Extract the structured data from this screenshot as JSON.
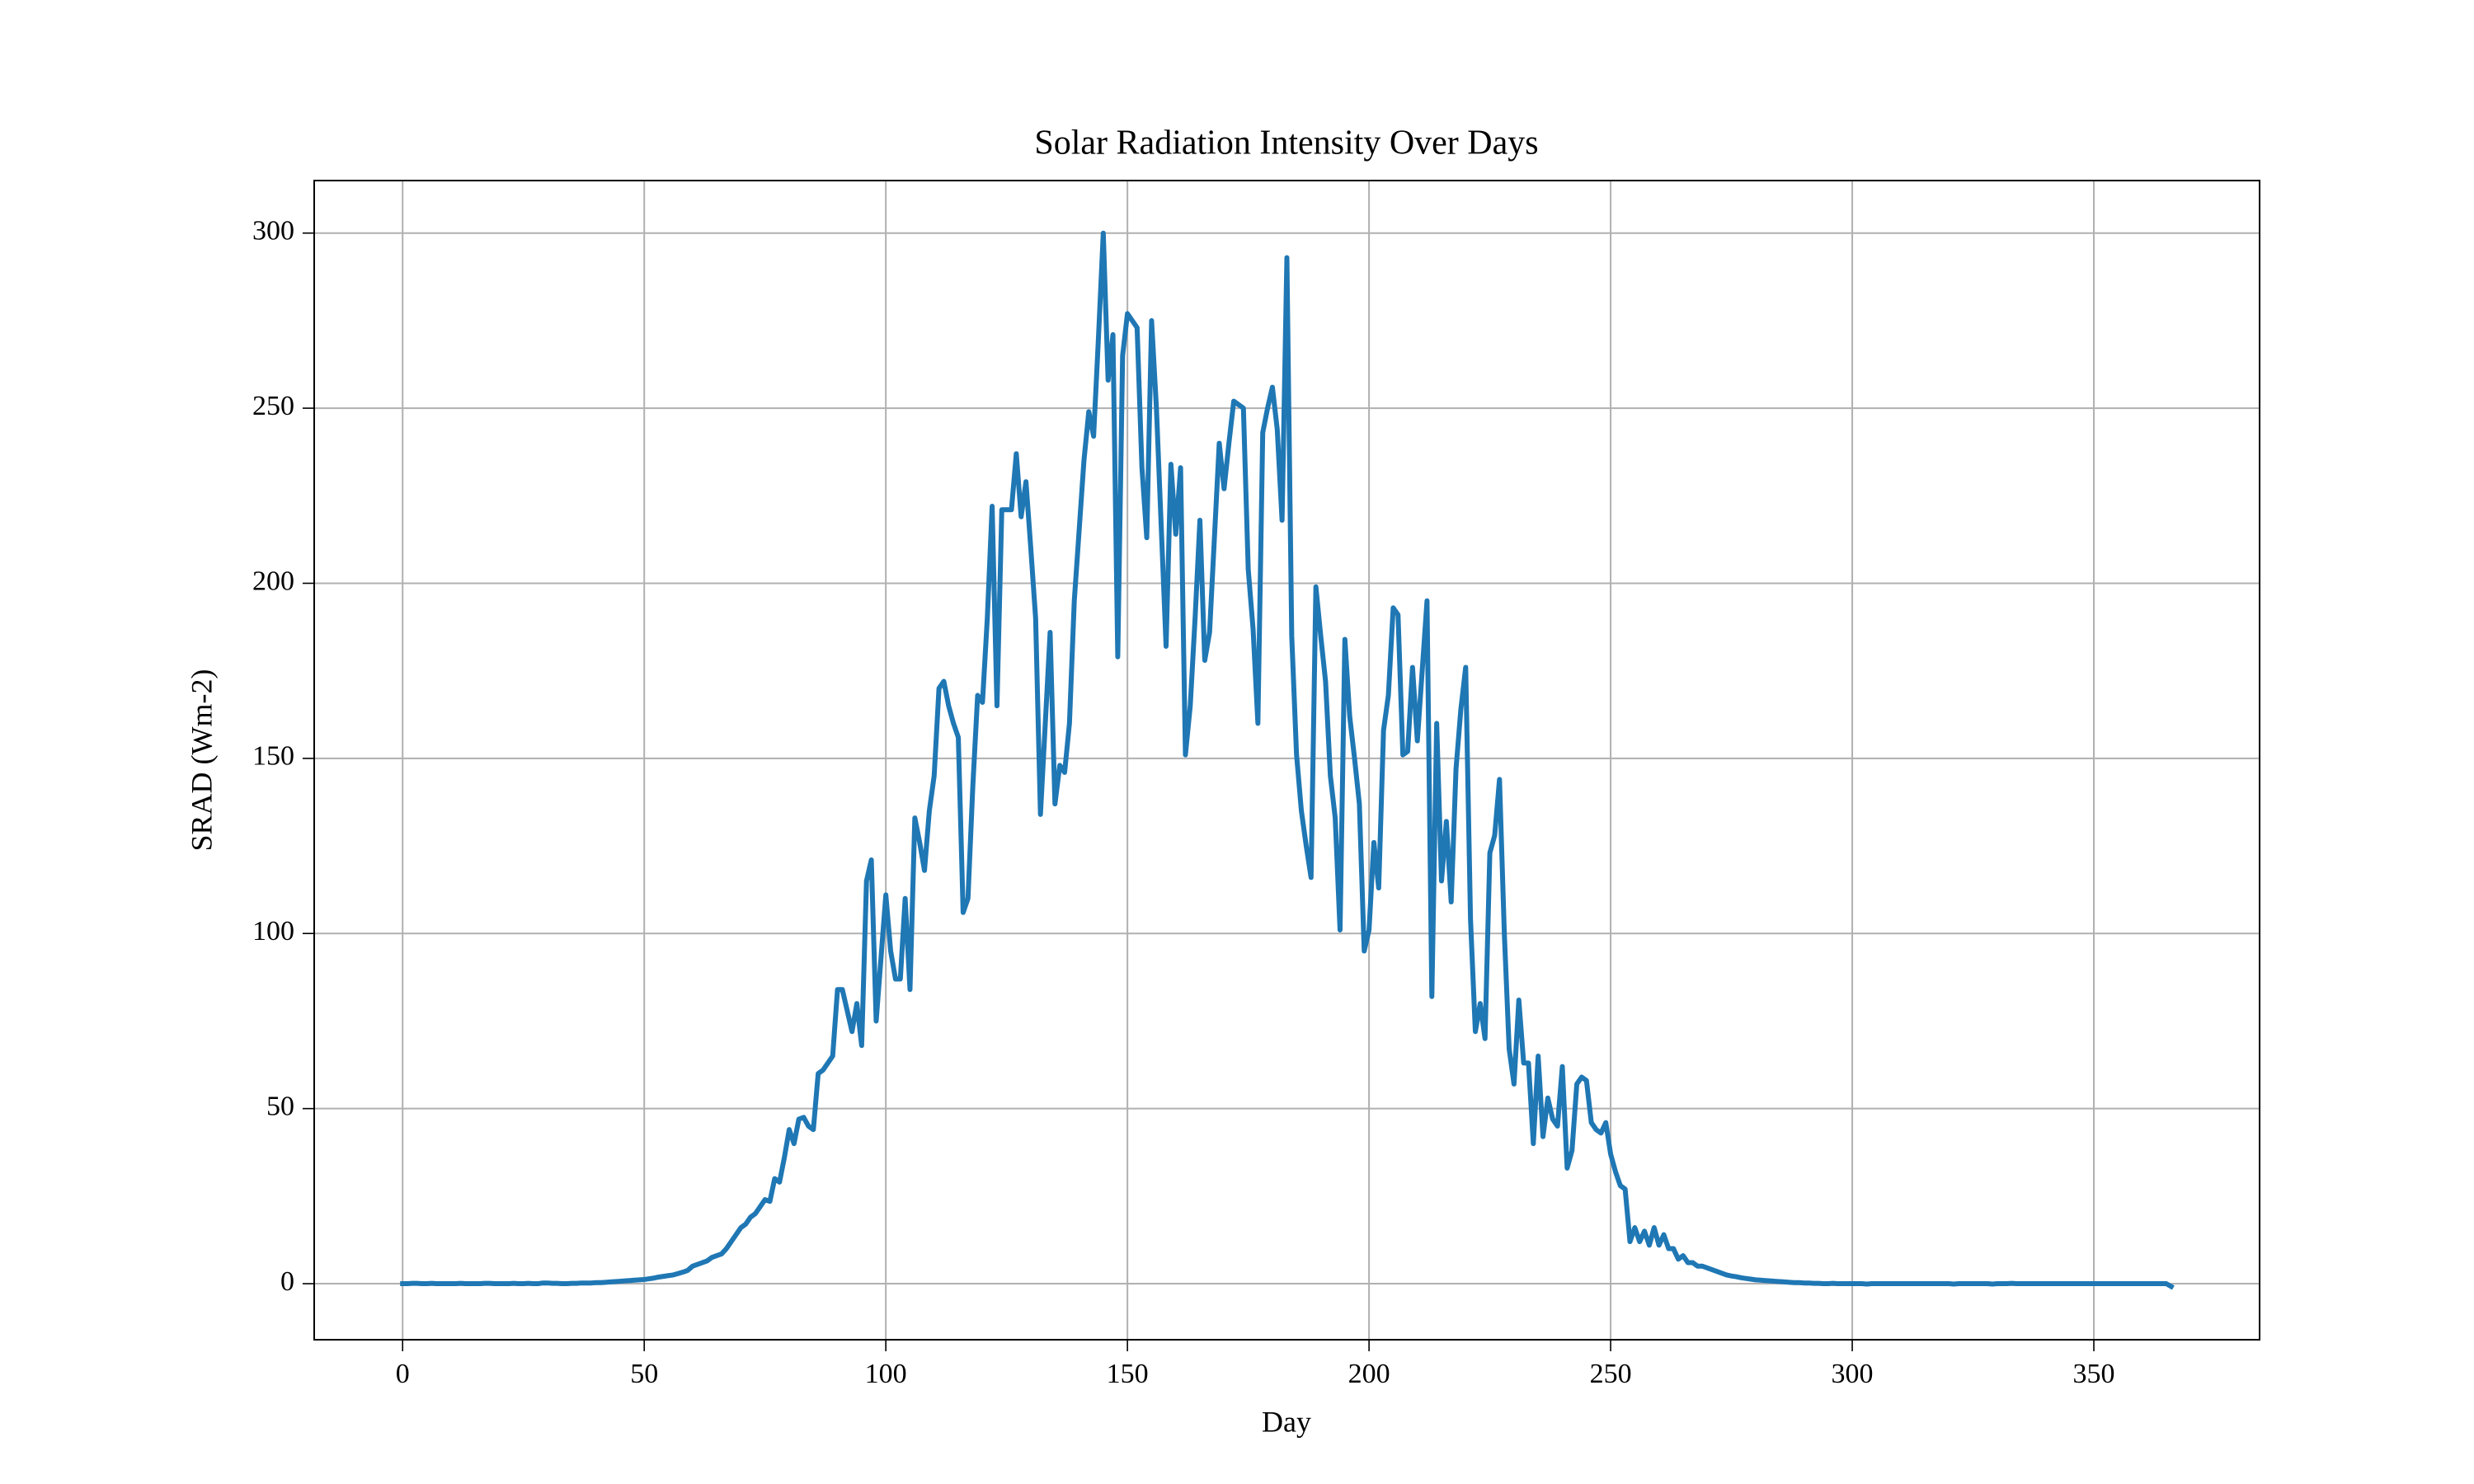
{
  "chart_data": {
    "type": "line",
    "title": "Solar Radiation Intensity Over Days",
    "x_label": "Day",
    "y_label": "SRAD (Wm-2)",
    "xlim": [
      -18.3,
      384.3
    ],
    "ylim": [
      -16,
      315
    ],
    "xticks": [
      0,
      50,
      100,
      150,
      200,
      250,
      300,
      350
    ],
    "yticks": [
      0,
      50,
      100,
      150,
      200,
      250,
      300
    ],
    "grid": true,
    "x": [
      0,
      1,
      2,
      3,
      4,
      5,
      6,
      7,
      8,
      9,
      10,
      11,
      12,
      13,
      14,
      15,
      16,
      17,
      18,
      19,
      20,
      21,
      22,
      23,
      24,
      25,
      26,
      27,
      28,
      29,
      30,
      31,
      32,
      33,
      34,
      35,
      36,
      37,
      38,
      39,
      40,
      41,
      42,
      43,
      44,
      45,
      46,
      47,
      48,
      49,
      50,
      51,
      52,
      53,
      54,
      55,
      56,
      57,
      58,
      59,
      60,
      61,
      62,
      63,
      64,
      65,
      66,
      67,
      68,
      69,
      70,
      71,
      72,
      73,
      74,
      75,
      76,
      77,
      78,
      79,
      80,
      81,
      82,
      83,
      84,
      85,
      86,
      87,
      88,
      89,
      90,
      91,
      92,
      93,
      94,
      95,
      96,
      97,
      98,
      99,
      100,
      101,
      102,
      103,
      104,
      105,
      106,
      107,
      108,
      109,
      110,
      111,
      112,
      113,
      114,
      115,
      116,
      117,
      118,
      119,
      120,
      121,
      122,
      123,
      124,
      125,
      126,
      127,
      128,
      129,
      130,
      131,
      132,
      133,
      134,
      135,
      136,
      137,
      138,
      139,
      140,
      141,
      142,
      143,
      144,
      145,
      146,
      147,
      148,
      149,
      150,
      151,
      152,
      153,
      154,
      155,
      156,
      157,
      158,
      159,
      160,
      161,
      162,
      163,
      164,
      165,
      166,
      167,
      168,
      169,
      170,
      171,
      172,
      173,
      174,
      175,
      176,
      177,
      178,
      179,
      180,
      181,
      182,
      183,
      184,
      185,
      186,
      187,
      188,
      189,
      190,
      191,
      192,
      193,
      194,
      195,
      196,
      197,
      198,
      199,
      200,
      201,
      202,
      203,
      204,
      205,
      206,
      207,
      208,
      209,
      210,
      211,
      212,
      213,
      214,
      215,
      216,
      217,
      218,
      219,
      220,
      221,
      222,
      223,
      224,
      225,
      226,
      227,
      228,
      229,
      230,
      231,
      232,
      233,
      234,
      235,
      236,
      237,
      238,
      239,
      240,
      241,
      242,
      243,
      244,
      245,
      246,
      247,
      248,
      249,
      250,
      251,
      252,
      253,
      254,
      255,
      256,
      257,
      258,
      259,
      260,
      261,
      262,
      263,
      264,
      265,
      266,
      267,
      268,
      269,
      270,
      271,
      272,
      273,
      274,
      275,
      276,
      277,
      278,
      279,
      280,
      281,
      282,
      283,
      284,
      285,
      286,
      287,
      288,
      289,
      290,
      291,
      292,
      293,
      294,
      295,
      296,
      297,
      298,
      299,
      300,
      301,
      302,
      303,
      304,
      305,
      306,
      307,
      308,
      309,
      310,
      311,
      312,
      313,
      314,
      315,
      316,
      317,
      318,
      319,
      320,
      321,
      322,
      323,
      324,
      325,
      326,
      327,
      328,
      329,
      330,
      331,
      332,
      333,
      334,
      335,
      336,
      337,
      338,
      339,
      340,
      341,
      342,
      343,
      344,
      345,
      346,
      347,
      348,
      349,
      350,
      351,
      352,
      353,
      354,
      355,
      356,
      357,
      358,
      359,
      360,
      361,
      362,
      363,
      364,
      365,
      366
    ],
    "series": [
      {
        "color": "#1f77b4",
        "values": [
          0,
          0,
          0.1,
          0.1,
          0,
          0,
          0.1,
          0,
          0,
          0,
          0,
          0,
          0.1,
          0,
          0,
          0,
          0,
          0.1,
          0.1,
          0,
          0,
          0,
          0,
          0.1,
          0,
          0,
          0.1,
          0,
          0,
          0.2,
          0.2,
          0.1,
          0.1,
          0,
          0,
          0.1,
          0.1,
          0.2,
          0.2,
          0.2,
          0.3,
          0.3,
          0.4,
          0.5,
          0.6,
          0.7,
          0.8,
          0.9,
          1.0,
          1.1,
          1.2,
          1.4,
          1.6,
          1.9,
          2.1,
          2.3,
          2.5,
          2.9,
          3.3,
          3.8,
          5,
          5.5,
          6,
          6.5,
          7.5,
          8,
          8.5,
          10,
          12,
          14,
          16,
          17,
          19,
          20,
          22,
          24,
          23.5,
          30,
          29,
          36,
          44,
          40,
          47,
          47.5,
          45,
          44,
          60,
          61,
          63,
          65,
          84,
          84,
          78,
          72,
          80,
          68,
          115,
          121,
          75,
          93,
          111,
          95,
          87,
          87,
          110,
          84,
          133,
          126,
          118,
          135,
          145,
          170,
          172,
          165,
          160,
          156,
          106,
          110,
          142,
          168,
          166,
          190,
          222,
          165,
          221,
          221,
          221,
          237,
          219,
          229,
          210,
          190,
          134,
          160,
          186,
          137,
          148,
          146,
          160,
          195,
          215,
          235,
          249,
          242,
          270,
          300,
          258,
          271,
          179,
          265,
          277,
          275,
          273,
          233,
          213,
          275,
          250,
          216,
          182,
          234,
          214,
          233,
          151,
          165,
          190,
          218,
          178,
          186,
          213,
          240,
          227,
          240,
          252,
          251,
          250,
          204,
          187,
          160,
          243,
          250,
          256,
          244,
          218,
          293,
          185,
          151,
          135,
          125,
          116,
          199,
          185,
          172,
          145,
          133,
          101,
          184,
          162,
          150,
          137,
          95,
          101,
          126,
          113,
          158,
          168,
          193,
          191,
          151,
          152,
          176,
          155,
          175,
          195,
          82,
          160,
          115,
          132,
          109,
          147,
          164,
          176,
          104,
          72,
          80,
          70,
          123,
          128,
          144,
          100,
          67,
          57,
          81,
          63,
          63,
          40,
          65,
          42,
          53,
          47,
          45,
          62,
          33,
          38,
          57,
          59,
          58,
          46,
          44,
          43,
          46,
          37,
          32,
          28,
          27,
          12,
          16,
          12,
          15,
          11,
          16,
          11,
          14,
          10,
          10,
          7,
          8,
          6,
          6,
          5,
          5,
          4.5,
          4,
          3.5,
          3,
          2.5,
          2.2,
          2,
          1.7,
          1.5,
          1.3,
          1.1,
          1,
          0.9,
          0.8,
          0.7,
          0.6,
          0.5,
          0.4,
          0.3,
          0.3,
          0.2,
          0.2,
          0.1,
          0.1,
          0,
          0,
          0.1,
          0,
          0,
          0,
          0,
          0,
          0,
          -0.1,
          0,
          0,
          0,
          0,
          0,
          0,
          0,
          0,
          0,
          0,
          0,
          0,
          0,
          0,
          0,
          0,
          0,
          -0.1,
          0,
          0,
          0,
          0,
          0,
          0,
          0,
          -0.1,
          0,
          0,
          0,
          0.1,
          0,
          0,
          0,
          0,
          0,
          0,
          0,
          0,
          0,
          0,
          0,
          0,
          0,
          0,
          0,
          0,
          0,
          0,
          0,
          0,
          0,
          0,
          0,
          0,
          0,
          0,
          0,
          0,
          0,
          0,
          0,
          0,
          -0.8
        ]
      }
    ]
  }
}
